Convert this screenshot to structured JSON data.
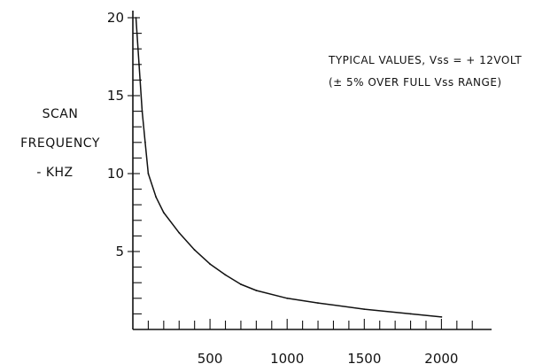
{
  "chart_data": {
    "type": "line",
    "title": "",
    "xlabel": "",
    "ylabel_lines": [
      "SCAN",
      "FREQUENCY",
      "- KHZ"
    ],
    "annotation_lines": [
      "TYPICAL VALUES, Vss = + 12VOLT",
      "(± 5% OVER FULL Vss RANGE)"
    ],
    "xlim": [
      0,
      2300
    ],
    "ylim": [
      0,
      20
    ],
    "x_minor_step": 100,
    "y_minor_step": 1,
    "x_ticks": [
      {
        "value": 500,
        "label": "500"
      },
      {
        "value": 1000,
        "label": "1000"
      },
      {
        "value": 1500,
        "label": "1500"
      },
      {
        "value": 2000,
        "label": "2000"
      }
    ],
    "y_ticks": [
      {
        "value": 5,
        "label": "5"
      },
      {
        "value": 10,
        "label": "10"
      },
      {
        "value": 15,
        "label": "15"
      },
      {
        "value": 20,
        "label": "20"
      }
    ],
    "grid": false,
    "line_color": "#111111",
    "series": [
      {
        "x": [
          20,
          40,
          60,
          80,
          100,
          150,
          200,
          300,
          400,
          500,
          600,
          700,
          800,
          1000,
          1200,
          1500,
          1800,
          2000
        ],
        "y": [
          20.0,
          17.0,
          14.0,
          12.0,
          10.0,
          8.5,
          7.5,
          6.2,
          5.1,
          4.2,
          3.5,
          2.9,
          2.5,
          2.0,
          1.7,
          1.3,
          1.0,
          0.8
        ]
      }
    ]
  }
}
